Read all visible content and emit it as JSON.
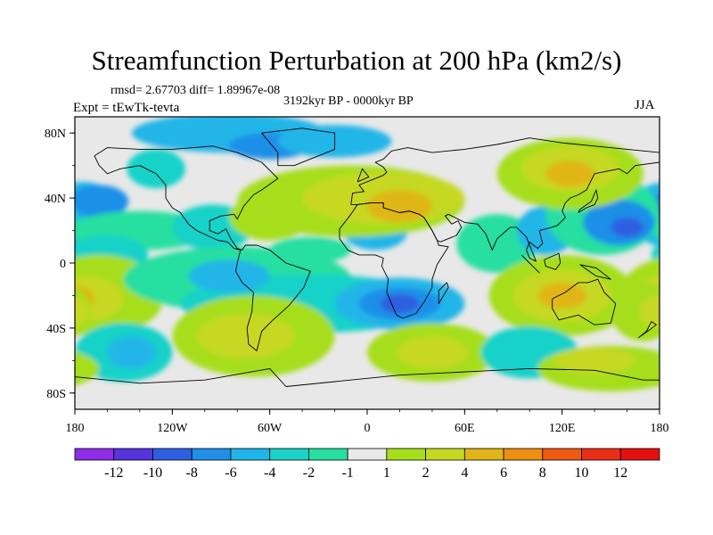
{
  "figure": {
    "title": "Streamfunction Perturbation at 200 hPa (km2/s)",
    "stats": "rmsd= 2.67703 diff= 1.89967e-08",
    "period": "3192kyr BP - 0000kyr BP",
    "experiment": "Expt = tEwTk-tevta",
    "season": "JJA"
  },
  "axes": {
    "y_ticks": [
      "80N",
      "40N",
      "0",
      "40S",
      "80S"
    ],
    "x_ticks": [
      "180",
      "120W",
      "60W",
      "0",
      "60E",
      "120E",
      "180"
    ]
  },
  "colorbar": {
    "labels": [
      "-12",
      "-10",
      "-8",
      "-6",
      "-4",
      "-2",
      "-1",
      "1",
      "2",
      "4",
      "6",
      "8",
      "10",
      "12"
    ],
    "colors": [
      "#8c2ee6",
      "#5533dd",
      "#2f5fe0",
      "#1f8fe8",
      "#20b5e8",
      "#19d2c8",
      "#27dfa0",
      "#e8e8e8",
      "#a6de1c",
      "#c6d821",
      "#e0b617",
      "#ee8f12",
      "#ee5a12",
      "#e82e14",
      "#e60f10"
    ]
  },
  "field": {
    "neutral_color": "#e8e8e8",
    "blobs": [
      {
        "lon": -175,
        "lat": 30,
        "rx": 25,
        "ry": 20,
        "level": 10
      },
      {
        "lon": -165,
        "lat": 38,
        "rx": 18,
        "ry": 10,
        "level": 11
      },
      {
        "lon": -130,
        "lat": 58,
        "rx": 18,
        "ry": 12,
        "level": 9
      },
      {
        "lon": -85,
        "lat": 80,
        "rx": 60,
        "ry": 12,
        "level": 10
      },
      {
        "lon": -60,
        "lat": 72,
        "rx": 25,
        "ry": 8,
        "level": 11
      },
      {
        "lon": -20,
        "lat": 75,
        "rx": 35,
        "ry": 10,
        "level": 10
      },
      {
        "lon": -140,
        "lat": 20,
        "rx": 45,
        "ry": 12,
        "level": 8
      },
      {
        "lon": -160,
        "lat": 5,
        "rx": 25,
        "ry": 12,
        "level": 9
      },
      {
        "lon": -95,
        "lat": 22,
        "rx": 25,
        "ry": 14,
        "level": 9
      },
      {
        "lon": -35,
        "lat": 8,
        "rx": 25,
        "ry": 8,
        "level": 8
      },
      {
        "lon": 5,
        "lat": 20,
        "rx": 20,
        "ry": 12,
        "level": 10
      },
      {
        "lon": -10,
        "lat": 38,
        "rx": 70,
        "ry": 22,
        "level": 1
      },
      {
        "lon": 10,
        "lat": 40,
        "rx": 50,
        "ry": 16,
        "level": 2
      },
      {
        "lon": 20,
        "lat": 35,
        "rx": 20,
        "ry": 10,
        "level": 3
      },
      {
        "lon": -60,
        "lat": 28,
        "rx": 25,
        "ry": 14,
        "level": 1
      },
      {
        "lon": 80,
        "lat": 12,
        "rx": 25,
        "ry": 18,
        "level": 8
      },
      {
        "lon": 110,
        "lat": 20,
        "rx": 18,
        "ry": 15,
        "level": 10
      },
      {
        "lon": 145,
        "lat": 30,
        "rx": 35,
        "ry": 25,
        "level": 8
      },
      {
        "lon": 155,
        "lat": 25,
        "rx": 22,
        "ry": 14,
        "level": 11
      },
      {
        "lon": 160,
        "lat": 22,
        "rx": 10,
        "ry": 6,
        "level": 12
      },
      {
        "lon": 125,
        "lat": 55,
        "rx": 45,
        "ry": 22,
        "level": 1
      },
      {
        "lon": 125,
        "lat": 58,
        "rx": 30,
        "ry": 14,
        "level": 2
      },
      {
        "lon": 125,
        "lat": 55,
        "rx": 15,
        "ry": 8,
        "level": 3
      },
      {
        "lon": -165,
        "lat": -20,
        "rx": 40,
        "ry": 25,
        "level": 1
      },
      {
        "lon": -175,
        "lat": -22,
        "rx": 25,
        "ry": 14,
        "level": 2
      },
      {
        "lon": -178,
        "lat": -22,
        "rx": 10,
        "ry": 8,
        "level": 3
      },
      {
        "lon": -150,
        "lat": -55,
        "rx": 30,
        "ry": 18,
        "level": 9
      },
      {
        "lon": -145,
        "lat": -55,
        "rx": 15,
        "ry": 10,
        "level": 10
      },
      {
        "lon": -80,
        "lat": -10,
        "rx": 70,
        "ry": 20,
        "level": 8
      },
      {
        "lon": -35,
        "lat": -25,
        "rx": 80,
        "ry": 18,
        "level": 9
      },
      {
        "lon": -85,
        "lat": -8,
        "rx": 25,
        "ry": 10,
        "level": 10
      },
      {
        "lon": 20,
        "lat": -25,
        "rx": 40,
        "ry": 16,
        "level": 10
      },
      {
        "lon": 20,
        "lat": -25,
        "rx": 25,
        "ry": 10,
        "level": 11
      },
      {
        "lon": 20,
        "lat": -25,
        "rx": 12,
        "ry": 6,
        "level": 12
      },
      {
        "lon": -70,
        "lat": -45,
        "rx": 50,
        "ry": 25,
        "level": 1
      },
      {
        "lon": -75,
        "lat": -45,
        "rx": 30,
        "ry": 14,
        "level": 2
      },
      {
        "lon": 40,
        "lat": -55,
        "rx": 40,
        "ry": 18,
        "level": 1
      },
      {
        "lon": 40,
        "lat": -55,
        "rx": 22,
        "ry": 10,
        "level": 2
      },
      {
        "lon": 120,
        "lat": -20,
        "rx": 45,
        "ry": 25,
        "level": 1
      },
      {
        "lon": 120,
        "lat": -20,
        "rx": 30,
        "ry": 16,
        "level": 2
      },
      {
        "lon": 120,
        "lat": -20,
        "rx": 15,
        "ry": 8,
        "level": 3
      },
      {
        "lon": 170,
        "lat": -30,
        "rx": 20,
        "ry": 18,
        "level": 1
      },
      {
        "lon": 178,
        "lat": -30,
        "rx": 10,
        "ry": 10,
        "level": 2
      },
      {
        "lon": 100,
        "lat": -55,
        "rx": 30,
        "ry": 16,
        "level": 9
      },
      {
        "lon": 150,
        "lat": -65,
        "rx": 45,
        "ry": 14,
        "level": 1
      },
      {
        "lon": 140,
        "lat": -60,
        "rx": 25,
        "ry": 8,
        "level": 2
      }
    ],
    "color_levels": [
      "#a6de1c",
      "#c6d821",
      "#e0b617",
      "#ee8f12",
      "#ee5a12",
      "#e82e14",
      "#e60f10",
      "#27dfa0",
      "#19d2c8",
      "#20b5e8",
      "#1f8fe8",
      "#2f5fe0"
    ]
  },
  "coastlines": [
    [
      [
        -168,
        66
      ],
      [
        -160,
        71
      ],
      [
        -140,
        70
      ],
      [
        -120,
        70
      ],
      [
        -95,
        72
      ],
      [
        -80,
        68
      ],
      [
        -65,
        62
      ],
      [
        -55,
        52
      ],
      [
        -65,
        45
      ],
      [
        -70,
        42
      ],
      [
        -76,
        35
      ],
      [
        -80,
        27
      ],
      [
        -82,
        30
      ],
      [
        -90,
        29
      ],
      [
        -97,
        26
      ],
      [
        -97,
        20
      ],
      [
        -92,
        18
      ],
      [
        -87,
        21
      ],
      [
        -84,
        15
      ],
      [
        -80,
        9
      ],
      [
        -77,
        8
      ],
      [
        -75,
        11
      ],
      [
        -68,
        11
      ],
      [
        -60,
        8
      ],
      [
        -50,
        0
      ],
      [
        -35,
        -5
      ],
      [
        -39,
        -15
      ],
      [
        -48,
        -26
      ],
      [
        -58,
        -35
      ],
      [
        -65,
        -42
      ],
      [
        -68,
        -54
      ],
      [
        -73,
        -50
      ],
      [
        -74,
        -40
      ],
      [
        -71,
        -30
      ],
      [
        -70,
        -18
      ],
      [
        -77,
        -12
      ],
      [
        -81,
        -5
      ],
      [
        -80,
        0
      ],
      [
        -78,
        8
      ],
      [
        -82,
        9
      ],
      [
        -86,
        13
      ],
      [
        -92,
        14
      ],
      [
        -105,
        20
      ],
      [
        -110,
        24
      ],
      [
        -115,
        31
      ],
      [
        -120,
        34
      ],
      [
        -124,
        40
      ],
      [
        -124,
        48
      ],
      [
        -130,
        55
      ],
      [
        -140,
        60
      ],
      [
        -152,
        58
      ],
      [
        -160,
        55
      ],
      [
        -165,
        60
      ],
      [
        -168,
        66
      ]
    ],
    [
      [
        -55,
        60
      ],
      [
        -45,
        60
      ],
      [
        -20,
        70
      ],
      [
        -20,
        80
      ],
      [
        -40,
        83
      ],
      [
        -65,
        80
      ],
      [
        -55,
        68
      ],
      [
        -55,
        60
      ]
    ],
    [
      [
        -10,
        36
      ],
      [
        -9,
        43
      ],
      [
        -2,
        44
      ],
      [
        -5,
        48
      ],
      [
        5,
        52
      ],
      [
        10,
        54
      ],
      [
        12,
        56
      ],
      [
        10,
        59
      ],
      [
        5,
        62
      ],
      [
        10,
        64
      ],
      [
        15,
        69
      ],
      [
        25,
        71
      ],
      [
        40,
        68
      ],
      [
        60,
        70
      ],
      [
        80,
        73
      ],
      [
        100,
        77
      ],
      [
        120,
        74
      ],
      [
        140,
        72
      ],
      [
        160,
        70
      ],
      [
        180,
        68
      ],
      [
        180,
        62
      ],
      [
        165,
        60
      ],
      [
        160,
        55
      ],
      [
        155,
        58
      ],
      [
        140,
        55
      ],
      [
        135,
        45
      ],
      [
        130,
        42
      ],
      [
        125,
        40
      ],
      [
        122,
        37
      ],
      [
        120,
        32
      ],
      [
        122,
        28
      ],
      [
        117,
        23
      ],
      [
        110,
        21
      ],
      [
        106,
        20
      ],
      [
        108,
        12
      ],
      [
        105,
        9
      ],
      [
        100,
        13
      ],
      [
        98,
        8
      ],
      [
        100,
        3
      ],
      [
        104,
        1
      ],
      [
        98,
        16
      ],
      [
        92,
        22
      ],
      [
        88,
        22
      ],
      [
        80,
        15
      ],
      [
        77,
        8
      ],
      [
        73,
        18
      ],
      [
        68,
        24
      ],
      [
        60,
        25
      ],
      [
        56,
        27
      ],
      [
        50,
        30
      ],
      [
        48,
        29
      ],
      [
        52,
        24
      ],
      [
        56,
        26
      ],
      [
        58,
        22
      ],
      [
        55,
        17
      ],
      [
        45,
        13
      ],
      [
        43,
        14
      ],
      [
        40,
        20
      ],
      [
        35,
        28
      ],
      [
        32,
        30
      ],
      [
        26,
        32
      ],
      [
        20,
        31
      ],
      [
        10,
        34
      ],
      [
        10,
        37
      ],
      [
        2,
        37
      ],
      [
        -6,
        36
      ],
      [
        -10,
        36
      ]
    ],
    [
      [
        -6,
        36
      ],
      [
        -10,
        30
      ],
      [
        -17,
        21
      ],
      [
        -17,
        15
      ],
      [
        -12,
        8
      ],
      [
        -5,
        5
      ],
      [
        5,
        5
      ],
      [
        10,
        3
      ],
      [
        9,
        -2
      ],
      [
        13,
        -10
      ],
      [
        12,
        -18
      ],
      [
        18,
        -32
      ],
      [
        22,
        -34
      ],
      [
        30,
        -31
      ],
      [
        35,
        -24
      ],
      [
        40,
        -15
      ],
      [
        40,
        -10
      ],
      [
        43,
        -1
      ],
      [
        50,
        10
      ],
      [
        44,
        11
      ],
      [
        43,
        14
      ],
      [
        40,
        20
      ],
      [
        35,
        28
      ],
      [
        32,
        30
      ],
      [
        26,
        32
      ],
      [
        20,
        31
      ],
      [
        10,
        34
      ],
      [
        10,
        37
      ],
      [
        2,
        37
      ],
      [
        -6,
        36
      ]
    ],
    [
      [
        44,
        -25
      ],
      [
        50,
        -15
      ],
      [
        49,
        -12
      ],
      [
        44,
        -17
      ],
      [
        44,
        -25
      ]
    ],
    [
      [
        114,
        -22
      ],
      [
        122,
        -18
      ],
      [
        130,
        -12
      ],
      [
        136,
        -12
      ],
      [
        142,
        -10
      ],
      [
        146,
        -18
      ],
      [
        153,
        -25
      ],
      [
        150,
        -37
      ],
      [
        140,
        -38
      ],
      [
        130,
        -32
      ],
      [
        118,
        -35
      ],
      [
        114,
        -28
      ],
      [
        114,
        -22
      ]
    ],
    [
      [
        130,
        31
      ],
      [
        135,
        34
      ],
      [
        140,
        36
      ],
      [
        142,
        40
      ],
      [
        141,
        45
      ],
      [
        138,
        38
      ],
      [
        131,
        33
      ],
      [
        130,
        31
      ]
    ],
    [
      [
        95,
        5
      ],
      [
        105,
        -5
      ],
      [
        106,
        -6
      ],
      [
        100,
        0
      ],
      [
        95,
        5
      ]
    ],
    [
      [
        131,
        -1
      ],
      [
        141,
        -3
      ],
      [
        150,
        -10
      ],
      [
        141,
        -8
      ],
      [
        131,
        -1
      ]
    ],
    [
      [
        109,
        2
      ],
      [
        118,
        6
      ],
      [
        119,
        0
      ],
      [
        116,
        -4
      ],
      [
        110,
        -2
      ],
      [
        109,
        2
      ]
    ],
    [
      [
        167,
        -46
      ],
      [
        174,
        -41
      ],
      [
        178,
        -38
      ],
      [
        175,
        -36
      ],
      [
        172,
        -42
      ],
      [
        167,
        -46
      ]
    ],
    [
      [
        -6,
        50
      ],
      [
        -3,
        58
      ],
      [
        1,
        53
      ],
      [
        -6,
        50
      ]
    ],
    [
      [
        -180,
        -70
      ],
      [
        -140,
        -74
      ],
      [
        -100,
        -72
      ],
      [
        -60,
        -65
      ],
      [
        -50,
        -76
      ],
      [
        -20,
        -73
      ],
      [
        20,
        -69
      ],
      [
        60,
        -67
      ],
      [
        100,
        -65
      ],
      [
        140,
        -66
      ],
      [
        170,
        -72
      ],
      [
        180,
        -72
      ]
    ]
  ]
}
